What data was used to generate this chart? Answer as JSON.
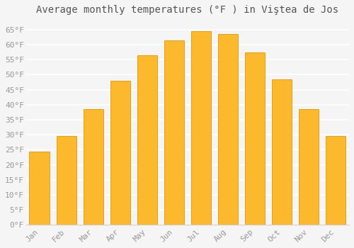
{
  "title": "Average monthly temperatures (°F ) in Viştea de Jos",
  "months": [
    "Jan",
    "Feb",
    "Mar",
    "Apr",
    "May",
    "Jun",
    "Jul",
    "Aug",
    "Sep",
    "Oct",
    "Nov",
    "Dec"
  ],
  "values": [
    24.5,
    29.5,
    38.5,
    48.0,
    56.5,
    61.5,
    64.5,
    63.5,
    57.5,
    48.5,
    38.5,
    29.5
  ],
  "bar_color": "#FDB92E",
  "bar_edge_color": "#E8A010",
  "background_color": "#F5F5F5",
  "grid_color": "#FFFFFF",
  "ylim": [
    0,
    68
  ],
  "yticks": [
    0,
    5,
    10,
    15,
    20,
    25,
    30,
    35,
    40,
    45,
    50,
    55,
    60,
    65
  ],
  "ytick_labels": [
    "0°F",
    "5°F",
    "10°F",
    "15°F",
    "20°F",
    "25°F",
    "30°F",
    "35°F",
    "40°F",
    "45°F",
    "50°F",
    "55°F",
    "60°F",
    "65°F"
  ],
  "title_fontsize": 10,
  "tick_fontsize": 8,
  "font_family": "monospace",
  "tick_color": "#999999",
  "title_color": "#555555"
}
